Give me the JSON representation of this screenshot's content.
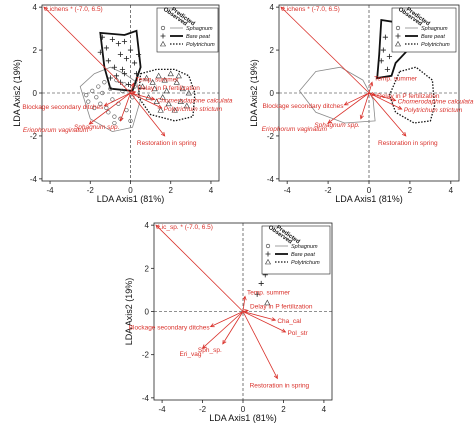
{
  "chart_data": [
    {
      "type": "scatter",
      "panel": "top-left",
      "xlabel": "LDA Axis1 (81%)",
      "ylabel": "LDA Axis2 (19%)",
      "xlim": [
        -4.4,
        4.4
      ],
      "ylim": [
        -4.1,
        4.1
      ],
      "xticks": [
        -4,
        -2,
        0,
        2,
        4
      ],
      "yticks": [
        -4,
        -2,
        0,
        2,
        4
      ],
      "legend": {
        "title_observed": "Observed",
        "title_predicted": "Predicted",
        "entries": [
          {
            "label": "Sphagnum",
            "marker": "circle",
            "line": "thin-grey"
          },
          {
            "label": "Bare peat",
            "marker": "plus",
            "line": "thick-black"
          },
          {
            "label": "Polytrichum",
            "marker": "triangle",
            "line": "dotted"
          }
        ]
      },
      "vectors": [
        {
          "label": "Lichens * (-7.0, 6.5)",
          "x": -4.3,
          "y": 4.0,
          "italic": false
        },
        {
          "label": "Temp. summer",
          "x": 0.15,
          "y": 0.45,
          "italic": false
        },
        {
          "label": "Delay in P fertilization",
          "x": 0.25,
          "y": 0.05,
          "italic": false
        },
        {
          "label": "Chomerodaphne calculata",
          "x": 1.2,
          "y": -0.3,
          "italic": true
        },
        {
          "label": "Polytrichum strictum",
          "x": 1.55,
          "y": -0.7,
          "italic": true
        },
        {
          "label": "Blockage secondary ditches",
          "x": -1.3,
          "y": -0.6,
          "italic": false
        },
        {
          "label": "Eriophorum vaginatum",
          "x": -2.05,
          "y": -1.45,
          "italic": true
        },
        {
          "label": "Sphagnum spp.",
          "x": -0.5,
          "y": -1.3,
          "italic": true
        },
        {
          "label": "Restoration in spring",
          "x": 1.7,
          "y": -2.0,
          "italic": false
        }
      ],
      "points": {
        "sphagnum": [
          [
            -2.1,
            -0.4
          ],
          [
            -1.9,
            0.1
          ],
          [
            -1.7,
            -0.2
          ],
          [
            -1.6,
            0.3
          ],
          [
            -1.5,
            -0.5
          ],
          [
            -1.3,
            0.5
          ],
          [
            -1.2,
            -0.7
          ],
          [
            -1.0,
            0.2
          ],
          [
            -0.9,
            -0.3
          ],
          [
            -0.8,
            -1.1
          ],
          [
            -0.7,
            0.6
          ],
          [
            -0.6,
            -0.5
          ],
          [
            -0.5,
            -1.2
          ],
          [
            -0.4,
            0.1
          ],
          [
            -0.3,
            0.4
          ],
          [
            -0.2,
            -0.8
          ],
          [
            0.0,
            -1.3
          ],
          [
            0.1,
            -0.2
          ],
          [
            -1.1,
            -0.9
          ],
          [
            -1.8,
            -0.7
          ],
          [
            -2.2,
            -0.1
          ],
          [
            -0.8,
            -1.4
          ],
          [
            -1.4,
            0.0
          ],
          [
            0.2,
            0.3
          ]
        ],
        "bare_peat": [
          [
            -1.4,
            2.6
          ],
          [
            -1.2,
            2.1
          ],
          [
            -1.1,
            1.5
          ],
          [
            -0.9,
            2.5
          ],
          [
            -0.8,
            1.2
          ],
          [
            -0.6,
            2.3
          ],
          [
            -0.5,
            1.8
          ],
          [
            -0.4,
            1.1
          ],
          [
            -0.3,
            2.4
          ],
          [
            -0.2,
            1.6
          ],
          [
            0.0,
            2.0
          ],
          [
            0.2,
            1.4
          ],
          [
            -0.7,
            0.8
          ],
          [
            -0.5,
            0.5
          ],
          [
            -0.3,
            0.9
          ],
          [
            -1.0,
            0.7
          ],
          [
            -0.1,
            0.4
          ],
          [
            0.3,
            0.9
          ],
          [
            0.4,
            1.8
          ],
          [
            -1.5,
            1.9
          ]
        ],
        "polytrichum": [
          [
            0.8,
            0.7
          ],
          [
            1.1,
            0.5
          ],
          [
            1.4,
            0.8
          ],
          [
            1.7,
            0.6
          ],
          [
            2.0,
            0.9
          ],
          [
            2.3,
            0.5
          ],
          [
            2.6,
            0.2
          ],
          [
            0.9,
            -0.2
          ],
          [
            1.3,
            -0.4
          ],
          [
            1.6,
            -0.2
          ],
          [
            1.9,
            -0.5
          ],
          [
            2.2,
            -0.8
          ],
          [
            2.5,
            -0.4
          ],
          [
            2.8,
            -0.6
          ],
          [
            1.2,
            0.2
          ],
          [
            1.8,
            0.1
          ],
          [
            0.6,
            0.3
          ],
          [
            1.5,
            -0.8
          ],
          [
            2.9,
            0.0
          ],
          [
            2.4,
            0.8
          ]
        ]
      },
      "hulls": {
        "sphagnum": [
          [
            -2.5,
            0.3
          ],
          [
            -1.8,
            0.9
          ],
          [
            -1.0,
            1.2
          ],
          [
            -0.3,
            0.9
          ],
          [
            0.3,
            0.5
          ],
          [
            0.5,
            -0.3
          ],
          [
            0.1,
            -1.6
          ],
          [
            -0.9,
            -1.8
          ],
          [
            -2.0,
            -1.2
          ]
        ],
        "bare_peat": [
          [
            -1.5,
            2.8
          ],
          [
            -0.3,
            2.7
          ],
          [
            0.3,
            2.9
          ],
          [
            0.5,
            1.2
          ],
          [
            0.1,
            0.1
          ],
          [
            -1.0,
            0.2
          ],
          [
            -1.3,
            1.2
          ]
        ],
        "polytrichum": [
          [
            0.5,
            0.9
          ],
          [
            1.3,
            1.1
          ],
          [
            2.2,
            1.1
          ],
          [
            2.9,
            0.8
          ],
          [
            3.2,
            0.0
          ],
          [
            3.1,
            -1.1
          ],
          [
            2.2,
            -1.3
          ],
          [
            1.0,
            -1.0
          ],
          [
            0.4,
            -0.2
          ]
        ]
      }
    },
    {
      "type": "scatter",
      "panel": "top-right",
      "xlabel": "LDA Axis1 (81%)",
      "ylabel": "LDA Axis2 (19%)",
      "xlim": [
        -4.4,
        4.4
      ],
      "ylim": [
        -4.1,
        4.1
      ],
      "xticks": [
        -4,
        -2,
        0,
        2,
        4
      ],
      "yticks": [
        -4,
        -2,
        0,
        2,
        4
      ],
      "legend": {
        "title_observed": "Observed",
        "title_predicted": "Predicted",
        "entries": [
          {
            "label": "Sphagnum",
            "marker": "circle",
            "line": "thin-grey"
          },
          {
            "label": "Bare peat",
            "marker": "plus",
            "line": "thick-black"
          },
          {
            "label": "Polytrichum",
            "marker": "triangle",
            "line": "dotted"
          }
        ]
      },
      "vectors": [
        {
          "label": "Lichens * (-7.0, 6.5)",
          "x": -4.3,
          "y": 4.0,
          "italic": false
        },
        {
          "label": "Temp. summer",
          "x": 0.15,
          "y": 0.5,
          "italic": false
        },
        {
          "label": "Delay in P fertilization",
          "x": 0.3,
          "y": -0.1,
          "italic": false
        },
        {
          "label": "Chomerodaphne calculata",
          "x": 1.3,
          "y": -0.35,
          "italic": true
        },
        {
          "label": "Polytrichum strictum",
          "x": 1.6,
          "y": -0.75,
          "italic": true
        },
        {
          "label": "Blockage secondary ditches",
          "x": -1.2,
          "y": -0.55,
          "italic": false
        },
        {
          "label": "Eriophorum vaginatum",
          "x": -2.0,
          "y": -1.4,
          "italic": true
        },
        {
          "label": "Sphagnum spp.",
          "x": -0.4,
          "y": -1.2,
          "italic": true
        },
        {
          "label": "Restoration in spring",
          "x": 1.8,
          "y": -2.0,
          "italic": false
        }
      ],
      "points": {
        "sphagnum": [],
        "bare_peat": [
          [
            0.6,
            1.5
          ],
          [
            0.7,
            2.0
          ],
          [
            0.8,
            2.6
          ],
          [
            0.9,
            1.1
          ],
          [
            1.0,
            1.7
          ]
        ],
        "polytrichum": []
      },
      "hulls": {
        "sphagnum": [
          [
            -3.4,
            0.1
          ],
          [
            -2.6,
            1.0
          ],
          [
            -1.4,
            1.2
          ],
          [
            -0.3,
            0.6
          ],
          [
            0.2,
            -0.3
          ],
          [
            0.3,
            -1.3
          ],
          [
            -1.2,
            -1.4
          ],
          [
            -2.6,
            -0.9
          ]
        ],
        "bare_peat": [
          [
            0.6,
            3.4
          ],
          [
            1.3,
            3.3
          ],
          [
            1.4,
            2.9
          ],
          [
            1.8,
            1.9
          ],
          [
            1.3,
            1.4
          ],
          [
            1.1,
            0.8
          ],
          [
            0.4,
            0.7
          ],
          [
            0.5,
            1.8
          ]
        ],
        "polytrichum": [
          [
            1.5,
            1.0
          ],
          [
            2.3,
            1.2
          ],
          [
            3.1,
            0.6
          ],
          [
            3.2,
            -0.6
          ],
          [
            3.0,
            -1.3
          ],
          [
            2.2,
            -1.4
          ],
          [
            1.3,
            -0.9
          ],
          [
            1.0,
            -0.1
          ]
        ]
      }
    },
    {
      "type": "scatter",
      "panel": "bottom",
      "xlabel": "LDA Axis1 (81%)",
      "ylabel": "LDA Axis2 (19%)",
      "xlim": [
        -4.4,
        4.4
      ],
      "ylim": [
        -4.1,
        4.1
      ],
      "xticks": [
        -4,
        -2,
        0,
        2,
        4
      ],
      "yticks": [
        -4,
        -2,
        0,
        2,
        4
      ],
      "legend": {
        "title_observed": "Observed",
        "title_predicted": "Predicted",
        "entries": [
          {
            "label": "Sphagnum",
            "marker": "circle",
            "line": "thin-grey"
          },
          {
            "label": "Bare peat",
            "marker": "plus",
            "line": "thick-black"
          },
          {
            "label": "Polytrichum",
            "marker": "triangle",
            "line": "dotted"
          }
        ]
      },
      "vectors": [
        {
          "label": "Lic_sp. * (-7.0, 6.5)",
          "x": -4.3,
          "y": 4.0,
          "italic": false
        },
        {
          "label": "Temp. summer",
          "x": 0.1,
          "y": 0.7,
          "italic": false
        },
        {
          "label": "Delay in P fertilization",
          "x": 0.25,
          "y": 0.05,
          "italic": false
        },
        {
          "label": "Cha_cal",
          "x": 1.6,
          "y": -0.4,
          "italic": false
        },
        {
          "label": "Pol_str",
          "x": 2.1,
          "y": -0.95,
          "italic": false
        },
        {
          "label": "Blockage secondary ditches",
          "x": -1.6,
          "y": -0.7,
          "italic": false
        },
        {
          "label": "Eri_vag",
          "x": -2.0,
          "y": -1.7,
          "italic": false
        },
        {
          "label": "Sph_sp.",
          "x": -1.0,
          "y": -1.5,
          "italic": false
        },
        {
          "label": "Restoration in spring",
          "x": 1.7,
          "y": -3.1,
          "italic": false
        }
      ],
      "points": {
        "sphagnum": [],
        "bare_peat": [
          [
            0.7,
            0.8
          ],
          [
            0.9,
            1.3
          ],
          [
            1.1,
            1.7
          ],
          [
            1.4,
            1.9
          ]
        ],
        "polytrichum": [
          [
            1.2,
            0.4
          ]
        ]
      },
      "hulls": {
        "sphagnum": [],
        "bare_peat": [],
        "polytrichum": []
      }
    }
  ],
  "colors": {
    "vector": "#d9302a",
    "axis": "#222222",
    "sphagnum_hull": "#8a8a8a",
    "bare_peat_hull": "#111111",
    "polytrichum_hull": "#111111"
  }
}
